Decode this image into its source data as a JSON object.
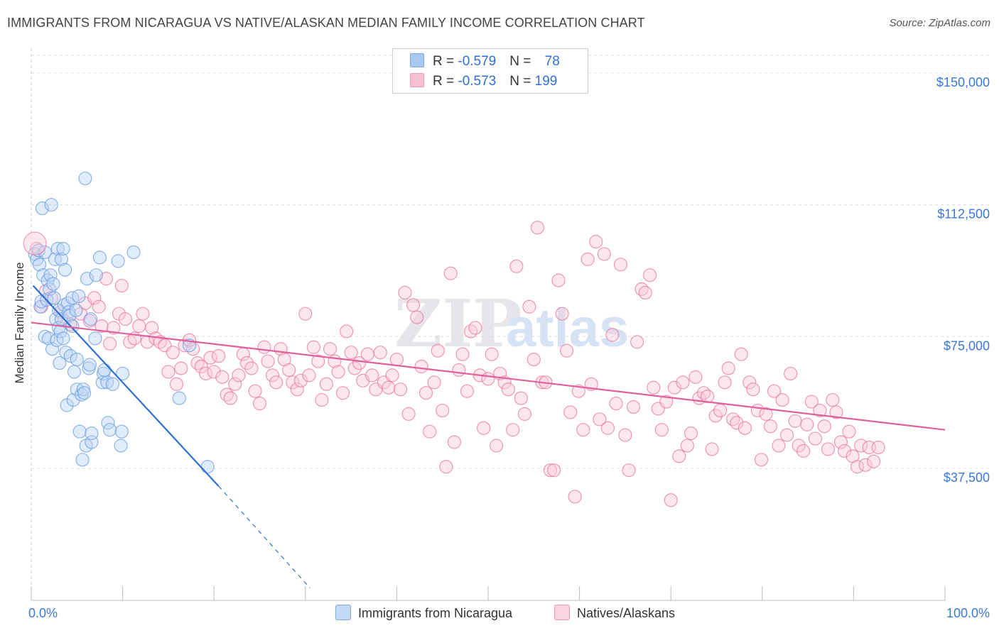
{
  "title": "IMMIGRANTS FROM NICARAGUA VS NATIVE/ALASKAN MEDIAN FAMILY INCOME CORRELATION CHART",
  "source": "Source: ZipAtlas.com",
  "watermark": "ZIPatlas",
  "legend_top": [
    {
      "r_label": "R = ",
      "r_value": "-0.579",
      "n_label": "N = ",
      "n_value": "78",
      "color": "#a9c8f2",
      "border": "#7ea9e5"
    },
    {
      "r_label": "R = ",
      "r_value": "-0.573",
      "n_label": "N = ",
      "n_value": "199",
      "color": "#f8c0d2",
      "border": "#f09bb8"
    }
  ],
  "legend_bottom": [
    {
      "label": "Immigrants from Nicaragua",
      "color": "#c3d9f6",
      "border": "#7ea9e5"
    },
    {
      "label": "Natives/Alaskans",
      "color": "#fbd3e0",
      "border": "#f09bb8"
    }
  ],
  "chart_data": {
    "type": "scatter",
    "title": "IMMIGRANTS FROM NICARAGUA VS NATIVE/ALASKAN MEDIAN FAMILY INCOME CORRELATION CHART",
    "xlabel": "",
    "ylabel": "Median Family Income",
    "xlim": [
      0,
      100
    ],
    "ylim": [
      0,
      155000
    ],
    "x_tick_labels": [
      "0.0%",
      "100.0%"
    ],
    "y_ticks": [
      37500,
      75000,
      112500,
      150000
    ],
    "y_tick_labels": [
      "$37,500",
      "$75,000",
      "$112,500",
      "$150,000"
    ],
    "grid": true,
    "legend": "top-center",
    "series": [
      {
        "name": "Immigrants from Nicaragua",
        "color": "#6a9de0",
        "fill": "#bcd5f4",
        "trend": {
          "x": [
            0.2,
            20.5
          ],
          "y": [
            89500,
            32500
          ],
          "dash_to": [
            30.5,
            3500
          ]
        },
        "points": [
          [
            0.4,
            98500
          ],
          [
            0.6,
            97000
          ],
          [
            0.8,
            99500
          ],
          [
            0.9,
            95500
          ],
          [
            1.0,
            83500
          ],
          [
            1.1,
            85000
          ],
          [
            1.2,
            111500
          ],
          [
            1.3,
            92500
          ],
          [
            1.5,
            99000
          ],
          [
            1.5,
            75000
          ],
          [
            1.7,
            85500
          ],
          [
            1.8,
            91000
          ],
          [
            1.9,
            74500
          ],
          [
            2.0,
            88500
          ],
          [
            2.1,
            92500
          ],
          [
            2.2,
            112500
          ],
          [
            2.3,
            71500
          ],
          [
            2.4,
            90000
          ],
          [
            2.5,
            86000
          ],
          [
            2.6,
            97000
          ],
          [
            2.7,
            80000
          ],
          [
            2.8,
            74000
          ],
          [
            2.9,
            100000
          ],
          [
            3.0,
            82500
          ],
          [
            3.0,
            77500
          ],
          [
            3.1,
            67500
          ],
          [
            3.2,
            76500
          ],
          [
            3.3,
            80000
          ],
          [
            3.3,
            97000
          ],
          [
            3.5,
            100000
          ],
          [
            3.5,
            74500
          ],
          [
            3.6,
            84000
          ],
          [
            3.7,
            94000
          ],
          [
            3.8,
            70500
          ],
          [
            3.9,
            55500
          ],
          [
            4.0,
            84500
          ],
          [
            4.1,
            82000
          ],
          [
            4.2,
            81000
          ],
          [
            4.3,
            69500
          ],
          [
            4.5,
            78000
          ],
          [
            4.5,
            86000
          ],
          [
            4.6,
            57000
          ],
          [
            4.7,
            65000
          ],
          [
            4.9,
            82500
          ],
          [
            5.0,
            60000
          ],
          [
            5.0,
            68500
          ],
          [
            5.2,
            86500
          ],
          [
            5.3,
            48000
          ],
          [
            5.5,
            58500
          ],
          [
            5.6,
            40000
          ],
          [
            5.7,
            60000
          ],
          [
            5.8,
            59000
          ],
          [
            5.9,
            120000
          ],
          [
            6.0,
            44000
          ],
          [
            6.1,
            91500
          ],
          [
            6.3,
            66000
          ],
          [
            6.4,
            67000
          ],
          [
            6.5,
            80000
          ],
          [
            6.6,
            45000
          ],
          [
            6.6,
            47500
          ],
          [
            7.0,
            74500
          ],
          [
            7.1,
            92500
          ],
          [
            7.5,
            97500
          ],
          [
            7.8,
            62000
          ],
          [
            7.9,
            64500
          ],
          [
            8.0,
            65500
          ],
          [
            8.3,
            62000
          ],
          [
            8.4,
            50500
          ],
          [
            8.6,
            48500
          ],
          [
            8.9,
            61500
          ],
          [
            9.5,
            96500
          ],
          [
            9.8,
            44000
          ],
          [
            9.9,
            48000
          ],
          [
            10.0,
            64500
          ],
          [
            11.2,
            99000
          ],
          [
            16.2,
            57500
          ],
          [
            17.3,
            72500
          ],
          [
            19.3,
            38000
          ]
        ]
      },
      {
        "name": "Natives/Alaskans",
        "color": "#e8769f",
        "fill": "#f9c9da",
        "trend": {
          "x": [
            0.0,
            100.0
          ],
          "y": [
            79000,
            48500
          ]
        },
        "points": [
          [
            0.6,
            100000
          ],
          [
            1.1,
            83500
          ],
          [
            1.6,
            88000
          ],
          [
            2.2,
            86000
          ],
          [
            3.2,
            82000
          ],
          [
            3.6,
            79500
          ],
          [
            4.3,
            78500
          ],
          [
            5.4,
            81500
          ],
          [
            5.9,
            84500
          ],
          [
            6.4,
            79500
          ],
          [
            6.9,
            86000
          ],
          [
            7.4,
            83500
          ],
          [
            7.7,
            78000
          ],
          [
            8.2,
            91500
          ],
          [
            8.6,
            73000
          ],
          [
            9.0,
            77500
          ],
          [
            9.6,
            81500
          ],
          [
            9.9,
            89500
          ],
          [
            10.3,
            80000
          ],
          [
            10.8,
            73500
          ],
          [
            11.3,
            74500
          ],
          [
            11.8,
            78000
          ],
          [
            12.2,
            81500
          ],
          [
            12.7,
            73500
          ],
          [
            13.2,
            77500
          ],
          [
            13.6,
            74500
          ],
          [
            14.1,
            73500
          ],
          [
            14.6,
            72500
          ],
          [
            15.0,
            65000
          ],
          [
            15.5,
            70500
          ],
          [
            15.9,
            61500
          ],
          [
            16.4,
            66000
          ],
          [
            16.8,
            72500
          ],
          [
            17.3,
            74000
          ],
          [
            17.7,
            71500
          ],
          [
            18.2,
            67500
          ],
          [
            18.6,
            66500
          ],
          [
            19.1,
            64500
          ],
          [
            19.6,
            69000
          ],
          [
            20.0,
            65000
          ],
          [
            20.5,
            69500
          ],
          [
            20.9,
            63500
          ],
          [
            21.4,
            58500
          ],
          [
            21.8,
            57500
          ],
          [
            22.3,
            61500
          ],
          [
            22.7,
            64000
          ],
          [
            23.2,
            70000
          ],
          [
            23.6,
            67500
          ],
          [
            24.1,
            66000
          ],
          [
            24.5,
            59500
          ],
          [
            25.0,
            56000
          ],
          [
            25.5,
            72000
          ],
          [
            25.9,
            68000
          ],
          [
            26.4,
            64000
          ],
          [
            26.8,
            62000
          ],
          [
            27.3,
            71500
          ],
          [
            27.7,
            68500
          ],
          [
            28.2,
            65500
          ],
          [
            28.6,
            62000
          ],
          [
            29.1,
            60000
          ],
          [
            29.5,
            62500
          ],
          [
            30.0,
            81500
          ],
          [
            30.4,
            64000
          ],
          [
            30.9,
            72000
          ],
          [
            31.4,
            68000
          ],
          [
            31.8,
            57000
          ],
          [
            32.3,
            61500
          ],
          [
            32.7,
            71500
          ],
          [
            33.2,
            68000
          ],
          [
            33.6,
            65000
          ],
          [
            34.1,
            59000
          ],
          [
            34.5,
            76500
          ],
          [
            35.0,
            70500
          ],
          [
            35.4,
            66000
          ],
          [
            35.9,
            67500
          ],
          [
            36.3,
            62500
          ],
          [
            36.8,
            70000
          ],
          [
            37.3,
            64000
          ],
          [
            37.7,
            60000
          ],
          [
            38.2,
            70500
          ],
          [
            38.6,
            62000
          ],
          [
            39.1,
            60500
          ],
          [
            39.5,
            64000
          ],
          [
            40.0,
            68500
          ],
          [
            40.4,
            60000
          ],
          [
            40.9,
            87500
          ],
          [
            41.3,
            53000
          ],
          [
            41.8,
            84000
          ],
          [
            42.2,
            80500
          ],
          [
            42.7,
            66500
          ],
          [
            43.2,
            59000
          ],
          [
            43.6,
            48000
          ],
          [
            44.1,
            62000
          ],
          [
            44.5,
            71000
          ],
          [
            45.0,
            54000
          ],
          [
            45.4,
            38000
          ],
          [
            45.9,
            93000
          ],
          [
            46.3,
            45000
          ],
          [
            46.8,
            65500
          ],
          [
            47.2,
            70000
          ],
          [
            47.7,
            59500
          ],
          [
            48.1,
            76500
          ],
          [
            48.6,
            77500
          ],
          [
            49.1,
            64000
          ],
          [
            49.5,
            49000
          ],
          [
            50.0,
            63000
          ],
          [
            50.4,
            70000
          ],
          [
            50.9,
            44000
          ],
          [
            51.3,
            64500
          ],
          [
            51.8,
            62000
          ],
          [
            52.2,
            60000
          ],
          [
            52.7,
            48500
          ],
          [
            53.1,
            95000
          ],
          [
            53.6,
            57500
          ],
          [
            54.0,
            53000
          ],
          [
            54.5,
            83500
          ],
          [
            55.0,
            68500
          ],
          [
            55.4,
            106000
          ],
          [
            55.9,
            62000
          ],
          [
            56.3,
            62000
          ],
          [
            56.8,
            37000
          ],
          [
            57.2,
            37000
          ],
          [
            57.7,
            91000
          ],
          [
            58.1,
            81500
          ],
          [
            58.6,
            71000
          ],
          [
            59.0,
            53500
          ],
          [
            59.5,
            29500
          ],
          [
            59.9,
            59500
          ],
          [
            60.4,
            48500
          ],
          [
            60.9,
            97000
          ],
          [
            61.3,
            61500
          ],
          [
            61.8,
            102000
          ],
          [
            62.2,
            51500
          ],
          [
            62.7,
            98500
          ],
          [
            63.1,
            49000
          ],
          [
            63.6,
            75500
          ],
          [
            64.0,
            56000
          ],
          [
            64.5,
            95500
          ],
          [
            65.0,
            47000
          ],
          [
            65.4,
            37000
          ],
          [
            65.9,
            55000
          ],
          [
            66.3,
            73500
          ],
          [
            66.8,
            88500
          ],
          [
            67.2,
            87500
          ],
          [
            67.7,
            92500
          ],
          [
            68.1,
            60500
          ],
          [
            68.6,
            54500
          ],
          [
            69.0,
            48500
          ],
          [
            69.5,
            56500
          ],
          [
            70.0,
            28500
          ],
          [
            70.4,
            60500
          ],
          [
            70.9,
            41000
          ],
          [
            71.3,
            62000
          ],
          [
            71.8,
            44000
          ],
          [
            72.2,
            47500
          ],
          [
            72.7,
            63500
          ],
          [
            73.1,
            57500
          ],
          [
            73.6,
            59000
          ],
          [
            74.0,
            58000
          ],
          [
            74.5,
            43000
          ],
          [
            74.9,
            52500
          ],
          [
            75.4,
            54000
          ],
          [
            75.9,
            62000
          ],
          [
            76.3,
            66000
          ],
          [
            76.8,
            51500
          ],
          [
            77.2,
            50500
          ],
          [
            77.7,
            70000
          ],
          [
            78.1,
            49000
          ],
          [
            78.6,
            62000
          ],
          [
            79.0,
            60000
          ],
          [
            79.5,
            54000
          ],
          [
            79.9,
            40000
          ],
          [
            80.4,
            53000
          ],
          [
            80.9,
            49500
          ],
          [
            81.3,
            59500
          ],
          [
            81.8,
            44000
          ],
          [
            82.2,
            57000
          ],
          [
            82.7,
            47000
          ],
          [
            83.1,
            64500
          ],
          [
            83.6,
            51000
          ],
          [
            84.0,
            44000
          ],
          [
            84.5,
            42500
          ],
          [
            84.9,
            50000
          ],
          [
            85.4,
            56500
          ],
          [
            85.8,
            46000
          ],
          [
            86.3,
            54000
          ],
          [
            86.8,
            49500
          ],
          [
            87.2,
            43000
          ],
          [
            87.7,
            57000
          ],
          [
            88.1,
            53500
          ],
          [
            88.6,
            45000
          ],
          [
            89.0,
            42500
          ],
          [
            89.5,
            48000
          ],
          [
            89.9,
            41000
          ],
          [
            90.4,
            38000
          ],
          [
            90.8,
            44000
          ],
          [
            91.3,
            38500
          ],
          [
            91.7,
            43500
          ],
          [
            92.2,
            39500
          ],
          [
            92.7,
            43500
          ]
        ]
      }
    ]
  }
}
